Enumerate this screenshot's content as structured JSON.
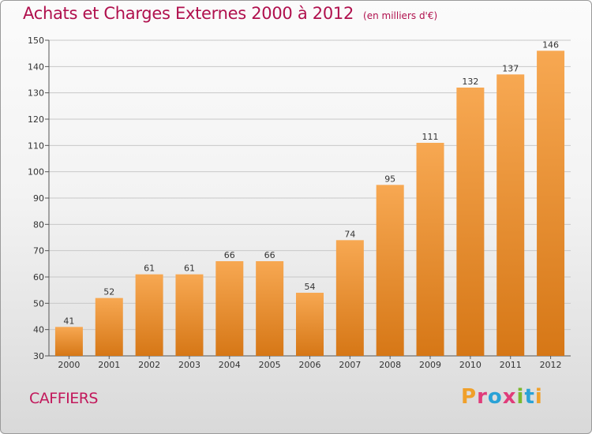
{
  "header": {
    "title": "Achats et Charges Externes 2000 à 2012",
    "unit": "(en milliers d'€)"
  },
  "footer": {
    "commune": "CAFFIERS",
    "logo": "Proxiti",
    "logo_colors": [
      "#f0a02a",
      "#e03c7a",
      "#2aa2d6",
      "#e03c7a",
      "#7cb82f",
      "#2aa2d6",
      "#f0a02a"
    ]
  },
  "colors": {
    "bar_top": "#f7a852",
    "bar_bottom": "#d67716",
    "grid": "#c8c8c8",
    "axis": "#555555",
    "title": "#b0104d"
  },
  "chart_data": {
    "type": "bar",
    "title": "Achats et Charges Externes 2000 à 2012",
    "subtitle": "(en milliers d'€)",
    "xlabel": "",
    "ylabel": "",
    "categories": [
      "2000",
      "2001",
      "2002",
      "2003",
      "2004",
      "2005",
      "2006",
      "2007",
      "2008",
      "2009",
      "2010",
      "2011",
      "2012"
    ],
    "values": [
      41,
      52,
      61,
      61,
      66,
      66,
      54,
      74,
      95,
      111,
      132,
      137,
      146
    ],
    "ylim": [
      30,
      150
    ],
    "yticks": [
      30,
      40,
      50,
      60,
      70,
      80,
      90,
      100,
      110,
      120,
      130,
      140,
      150
    ],
    "grid": true,
    "data_labels": true
  }
}
